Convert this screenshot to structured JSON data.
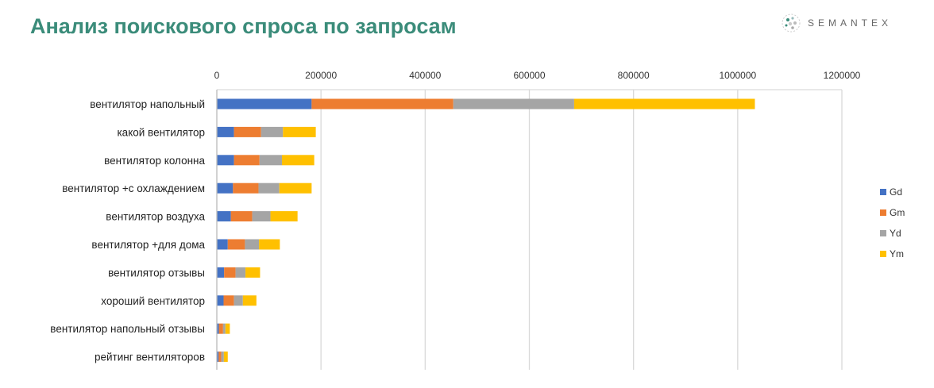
{
  "title": "Анализ поискового спроса по запросам",
  "logo": "SEMANTEX",
  "chart_data": {
    "type": "bar",
    "orientation": "horizontal",
    "stacked": true,
    "title": "",
    "xlabel": "",
    "ylabel": "",
    "xlim": [
      0,
      1200000
    ],
    "xticks": [
      "0",
      "200000",
      "400000",
      "600000",
      "800000",
      "1000000",
      "1200000"
    ],
    "grid": true,
    "legend": "right",
    "categories": [
      "вентилятор напольный",
      "какой вентилятор",
      "вентилятор колонна",
      "вентилятор +с охлаждением",
      "вентилятор воздуха",
      "вентилятор +для дома",
      "вентилятор отзывы",
      "хороший вентилятор",
      "вентилятор напольный отзывы",
      "рейтинг вентиляторов"
    ],
    "series": [
      {
        "name": "Gd",
        "color": "#4472c4",
        "values": [
          182000,
          33000,
          33000,
          31000,
          27000,
          21000,
          14000,
          13000,
          4000,
          3500
        ]
      },
      {
        "name": "Gm",
        "color": "#ed7d31",
        "values": [
          272000,
          52000,
          49000,
          49000,
          41000,
          33000,
          22000,
          20000,
          8000,
          5000
        ]
      },
      {
        "name": "Yd",
        "color": "#a5a5a5",
        "values": [
          232000,
          42000,
          43000,
          40000,
          35000,
          27000,
          19000,
          17000,
          4500,
          5000
        ]
      },
      {
        "name": "Ym",
        "color": "#ffc000",
        "values": [
          347000,
          63000,
          62000,
          62000,
          52000,
          40000,
          28000,
          26000,
          8500,
          7500
        ]
      }
    ]
  }
}
